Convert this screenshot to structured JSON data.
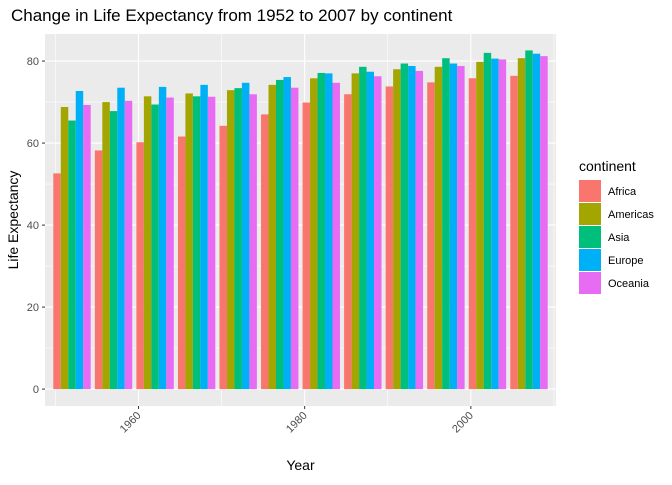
{
  "chart_data": {
    "type": "bar",
    "title": "Change in Life Expectancy from 1952 to 2007 by continent",
    "xlabel": "Year",
    "ylabel": "Life Expectancy",
    "x": [
      1952,
      1957,
      1962,
      1967,
      1972,
      1977,
      1982,
      1987,
      1992,
      1997,
      2002,
      2007
    ],
    "xlim": [
      1948.75,
      2010.25
    ],
    "ylim": [
      -4.12,
      86.6
    ],
    "xticks": [
      1960,
      1980,
      2000
    ],
    "xtick_labels": [
      "1960",
      "1980",
      "2000"
    ],
    "yticks": [
      0,
      20,
      40,
      60,
      80
    ],
    "ytick_labels": [
      "0",
      "20",
      "40",
      "60",
      "80"
    ],
    "grid": true,
    "legend": {
      "title": "continent",
      "position": "right"
    },
    "series": [
      {
        "name": "Africa",
        "color": "#F8766D",
        "values": [
          52.6,
          58.2,
          60.2,
          61.6,
          64.2,
          67.0,
          69.9,
          71.9,
          73.8,
          74.8,
          75.8,
          76.4
        ]
      },
      {
        "name": "Americas",
        "color": "#A3A500",
        "values": [
          68.8,
          70.0,
          71.4,
          72.1,
          72.9,
          74.2,
          75.8,
          77.0,
          78.0,
          78.6,
          79.8,
          80.7
        ]
      },
      {
        "name": "Asia",
        "color": "#00BF7D",
        "values": [
          65.5,
          67.8,
          69.4,
          71.4,
          73.4,
          75.4,
          77.1,
          78.6,
          79.4,
          80.7,
          82.0,
          82.6
        ]
      },
      {
        "name": "Europe",
        "color": "#00B0F6",
        "values": [
          72.7,
          73.5,
          73.7,
          74.2,
          74.7,
          76.1,
          77.0,
          77.4,
          78.8,
          79.4,
          80.6,
          81.8
        ]
      },
      {
        "name": "Oceania",
        "color": "#E76BF3",
        "values": [
          69.3,
          70.3,
          71.1,
          71.3,
          71.9,
          73.5,
          74.7,
          76.3,
          77.6,
          78.8,
          80.4,
          81.2
        ]
      }
    ]
  }
}
